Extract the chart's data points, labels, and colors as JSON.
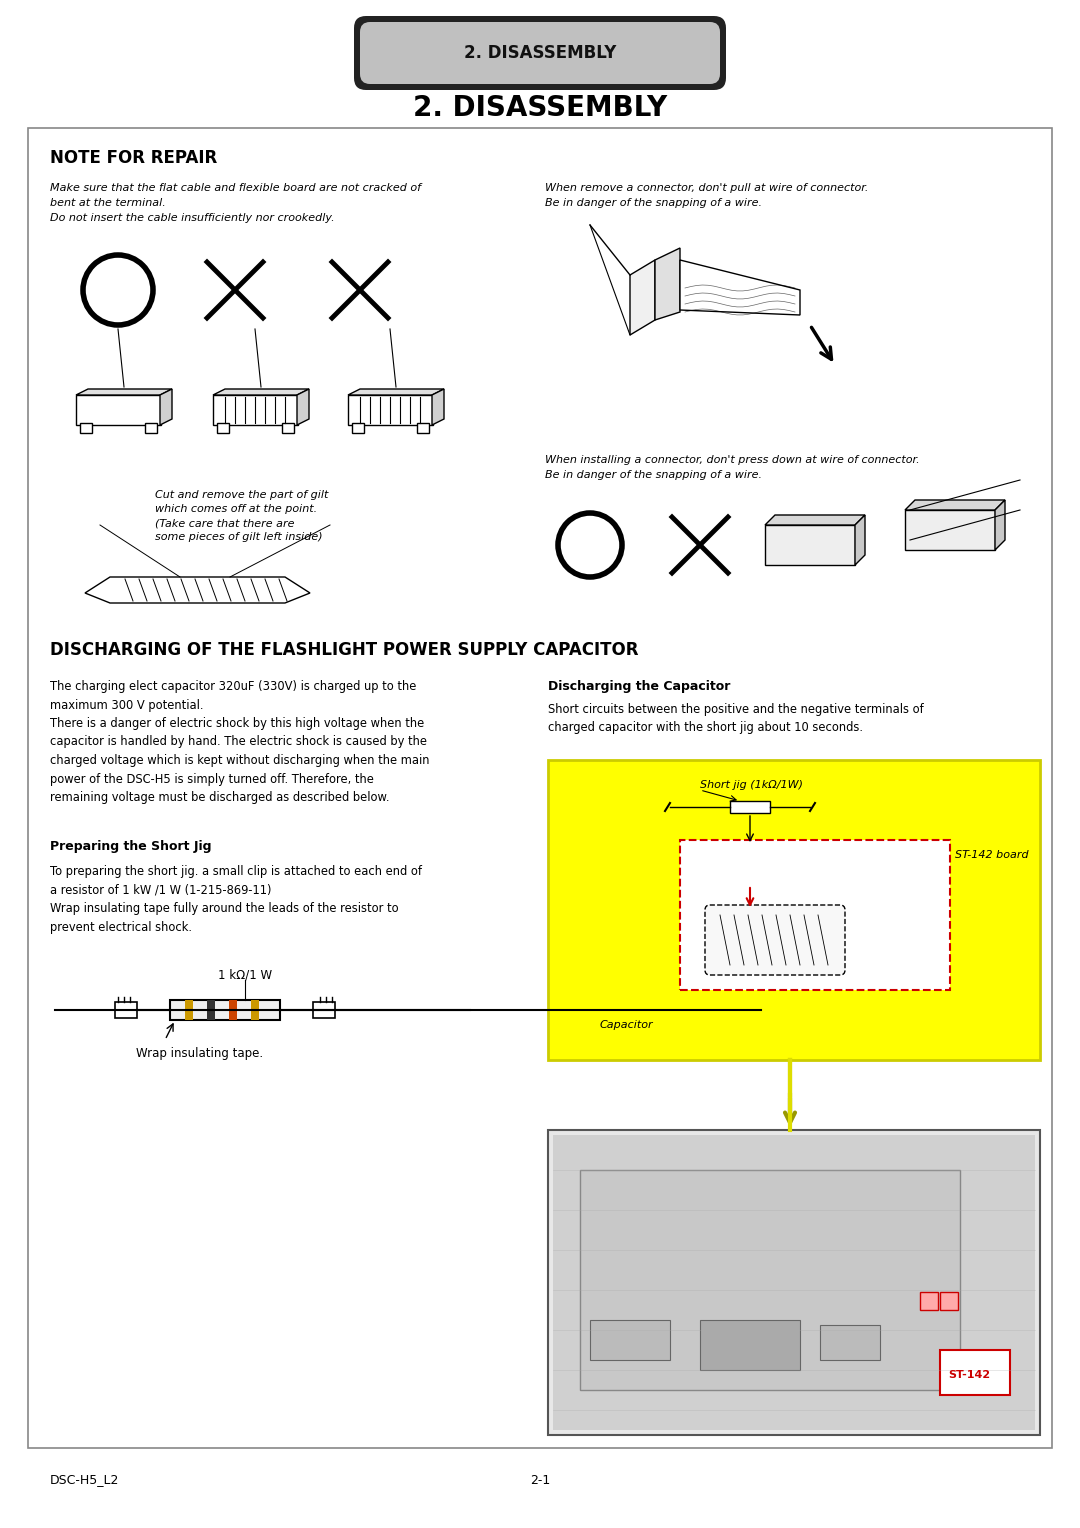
{
  "page_bg": "#ffffff",
  "title_tab_text": "2. DISASSEMBLY",
  "title_tab_bg": "#c0c0c0",
  "title_tab_border": "#222222",
  "main_title": "2. DISASSEMBLY",
  "section1_title": "NOTE FOR REPAIR",
  "section2_title": "DISCHARGING OF THE FLASHLIGHT POWER SUPPLY CAPACITOR",
  "note_left_text": "Make sure that the flat cable and flexible board are not cracked of\nbent at the terminal.\nDo not insert the cable insufficiently nor crookedly.",
  "note_right_text1": "When remove a connector, don't pull at wire of connector.\nBe in danger of the snapping of a wire.",
  "note_right_text2": "When installing a connector, don't press down at wire of connector.\nBe in danger of the snapping of a wire.",
  "cut_note": "Cut and remove the part of gilt\nwhich comes off at the point.\n(Take care that there are\nsome pieces of gilt left inside)",
  "discharge_left_text": "The charging elect capacitor 320uF (330V) is charged up to the\nmaximum 300 V potential.\nThere is a danger of electric shock by this high voltage when the\ncapacitor is handled by hand. The electric shock is caused by the\ncharged voltage which is kept without discharging when the main\npower of the DSC-H5 is simply turned off. Therefore, the\nremaining voltage must be discharged as described below.",
  "prep_title": "Preparing the Short Jig",
  "prep_text": "To preparing the short jig. a small clip is attached to each end of\na resistor of 1 kW /1 W (1-215-869-11)\nWrap insulating tape fully around the leads of the resistor to\nprevent electrical shock.",
  "resistor_label": "1 kΩ/1 W",
  "tape_label": "Wrap insulating tape.",
  "discharge_cap_title": "Discharging the Capacitor",
  "discharge_cap_text": "Short circuits between the positive and the negative terminals of\ncharged capacitor with the short jig about 10 seconds.",
  "short_jig_label": "Short jig (1kΩ/1W)",
  "st_board_label": "ST-142 board",
  "capacitor_label": "Capacitor",
  "yellow_box_color": "#ffff00",
  "st142_label": "ST-142",
  "footer_left": "DSC-H5_L2",
  "footer_center": "2-1",
  "content_border": "#888888",
  "text_color": "#000000"
}
